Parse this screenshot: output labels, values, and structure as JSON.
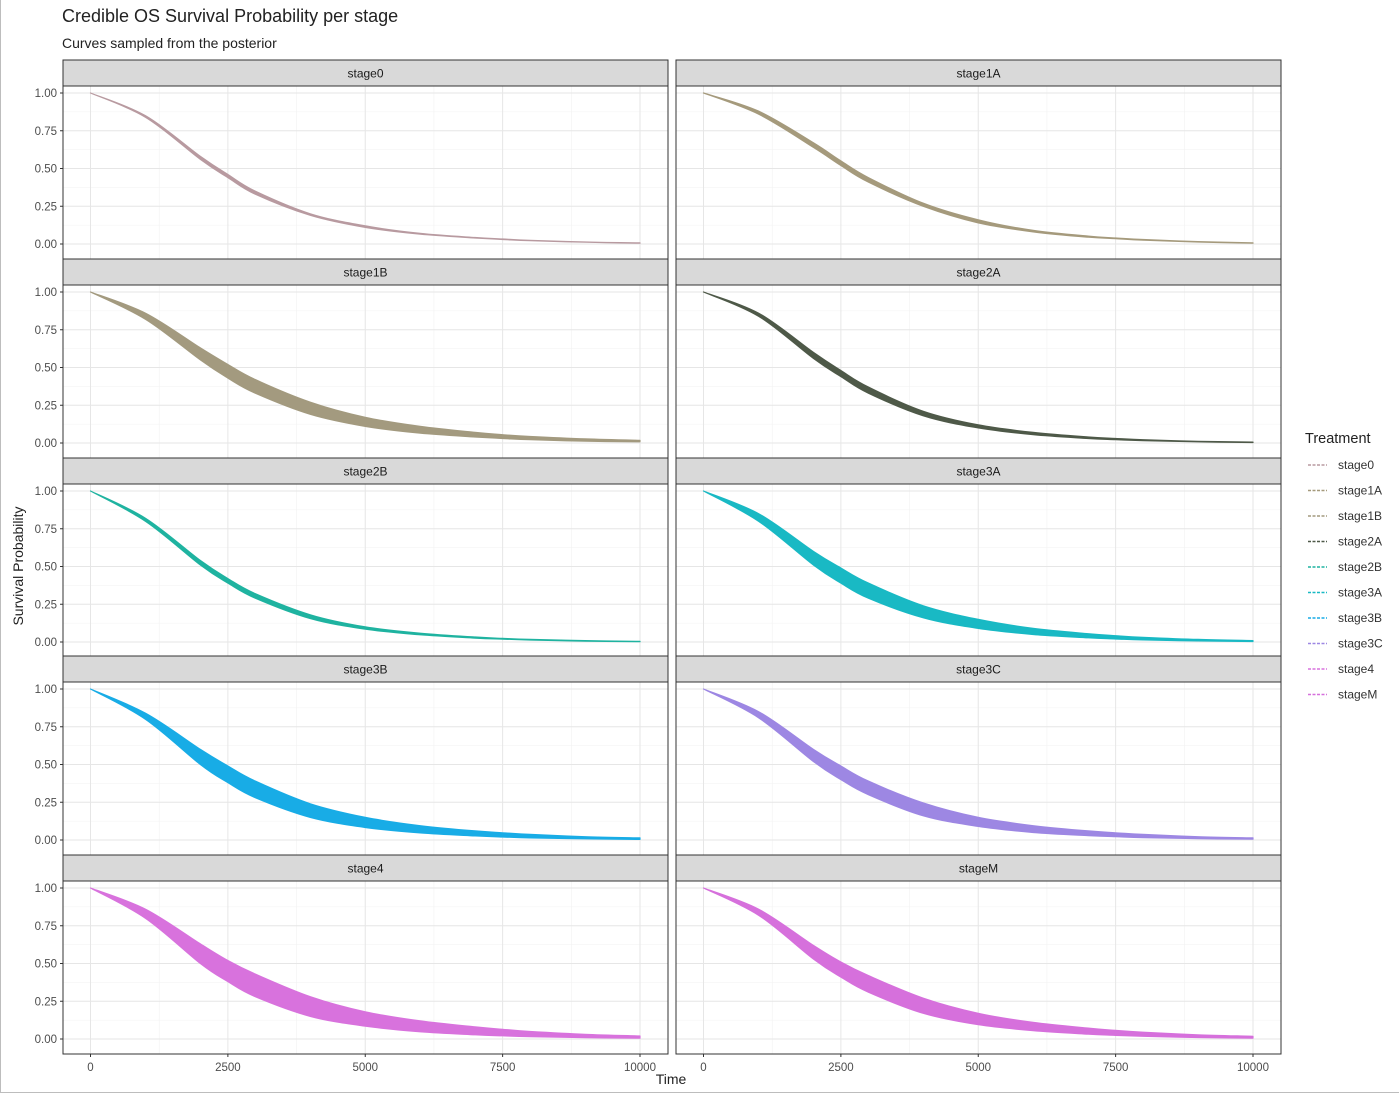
{
  "title": "Credible OS Survival Probability per stage",
  "subtitle": "Curves sampled from the posterior",
  "chart_data": {
    "type": "area",
    "xlabel": "Time",
    "ylabel": "Survival Probability",
    "xlim": [
      0,
      10000
    ],
    "ylim": [
      0,
      1
    ],
    "x_ticks": [
      0,
      2500,
      5000,
      7500,
      10000
    ],
    "y_ticks": [
      0,
      0.25,
      0.5,
      0.75,
      1
    ],
    "x_tick_labels": [
      "0",
      "2500",
      "5000",
      "7500",
      "10000"
    ],
    "y_tick_labels": [
      "0.00",
      "0.25",
      "0.50",
      "0.75",
      "1.00"
    ],
    "grid": true,
    "legend": {
      "title": "Treatment",
      "placement": "right"
    },
    "x": [
      0,
      1000,
      2000,
      2500,
      3000,
      4000,
      5000,
      6000,
      7000,
      7500,
      8000,
      9000,
      10000
    ],
    "series": [
      {
        "name": "stage0",
        "color": "#b89aa0",
        "lower": [
          1.0,
          0.84,
          0.56,
          0.44,
          0.33,
          0.19,
          0.11,
          0.065,
          0.04,
          0.03,
          0.022,
          0.012,
          0.005
        ],
        "upper": [
          1.0,
          0.85,
          0.58,
          0.46,
          0.35,
          0.2,
          0.12,
          0.07,
          0.043,
          0.033,
          0.024,
          0.013,
          0.007
        ]
      },
      {
        "name": "stage1A",
        "color": "#a59a7c",
        "lower": [
          1.0,
          0.86,
          0.64,
          0.52,
          0.41,
          0.25,
          0.14,
          0.08,
          0.045,
          0.035,
          0.025,
          0.013,
          0.005
        ],
        "upper": [
          1.0,
          0.88,
          0.67,
          0.55,
          0.44,
          0.27,
          0.16,
          0.09,
          0.052,
          0.04,
          0.03,
          0.016,
          0.008
        ]
      },
      {
        "name": "stage1B",
        "color": "#a39a7f",
        "lower": [
          1.0,
          0.82,
          0.55,
          0.43,
          0.33,
          0.19,
          0.11,
          0.065,
          0.04,
          0.03,
          0.022,
          0.012,
          0.008
        ],
        "upper": [
          1.0,
          0.86,
          0.63,
          0.52,
          0.42,
          0.27,
          0.17,
          0.11,
          0.07,
          0.055,
          0.043,
          0.027,
          0.018
        ]
      },
      {
        "name": "stage2A",
        "color": "#4e5948",
        "lower": [
          1.0,
          0.84,
          0.56,
          0.44,
          0.33,
          0.18,
          0.1,
          0.055,
          0.03,
          0.022,
          0.016,
          0.008,
          0.003
        ],
        "upper": [
          1.0,
          0.86,
          0.6,
          0.48,
          0.37,
          0.21,
          0.12,
          0.07,
          0.04,
          0.03,
          0.022,
          0.011,
          0.006
        ]
      },
      {
        "name": "stage2B",
        "color": "#1fb3a0",
        "lower": [
          1.0,
          0.8,
          0.51,
          0.39,
          0.29,
          0.155,
          0.085,
          0.048,
          0.026,
          0.019,
          0.013,
          0.006,
          0.002
        ],
        "upper": [
          1.0,
          0.82,
          0.54,
          0.42,
          0.32,
          0.18,
          0.1,
          0.058,
          0.033,
          0.024,
          0.017,
          0.009,
          0.004
        ]
      },
      {
        "name": "stage3A",
        "color": "#19b9c4",
        "lower": [
          1.0,
          0.8,
          0.51,
          0.39,
          0.29,
          0.16,
          0.09,
          0.05,
          0.028,
          0.02,
          0.014,
          0.007,
          0.003
        ],
        "upper": [
          1.0,
          0.85,
          0.6,
          0.49,
          0.39,
          0.24,
          0.15,
          0.09,
          0.055,
          0.042,
          0.031,
          0.017,
          0.009
        ]
      },
      {
        "name": "stage3B",
        "color": "#18ace6",
        "lower": [
          1.0,
          0.8,
          0.5,
          0.38,
          0.28,
          0.15,
          0.083,
          0.047,
          0.027,
          0.02,
          0.014,
          0.008,
          0.004
        ],
        "upper": [
          1.0,
          0.84,
          0.6,
          0.49,
          0.39,
          0.24,
          0.15,
          0.095,
          0.06,
          0.048,
          0.037,
          0.022,
          0.014
        ]
      },
      {
        "name": "stage3C",
        "color": "#9d87e3",
        "lower": [
          1.0,
          0.81,
          0.52,
          0.4,
          0.3,
          0.16,
          0.09,
          0.05,
          0.029,
          0.022,
          0.016,
          0.009,
          0.005
        ],
        "upper": [
          1.0,
          0.85,
          0.6,
          0.49,
          0.39,
          0.245,
          0.15,
          0.095,
          0.06,
          0.048,
          0.037,
          0.022,
          0.014
        ]
      },
      {
        "name": "stage4",
        "color": "#d872dd",
        "lower": [
          1.0,
          0.8,
          0.5,
          0.38,
          0.28,
          0.15,
          0.085,
          0.048,
          0.028,
          0.021,
          0.016,
          0.009,
          0.005
        ],
        "upper": [
          1.0,
          0.86,
          0.63,
          0.52,
          0.43,
          0.28,
          0.18,
          0.12,
          0.08,
          0.064,
          0.05,
          0.031,
          0.02
        ]
      },
      {
        "name": "stageM",
        "color": "#d670dc",
        "lower": [
          1.0,
          0.82,
          0.53,
          0.41,
          0.31,
          0.17,
          0.095,
          0.055,
          0.032,
          0.024,
          0.018,
          0.01,
          0.006
        ],
        "upper": [
          1.0,
          0.86,
          0.62,
          0.51,
          0.42,
          0.27,
          0.17,
          0.11,
          0.072,
          0.057,
          0.045,
          0.028,
          0.018
        ]
      }
    ]
  }
}
